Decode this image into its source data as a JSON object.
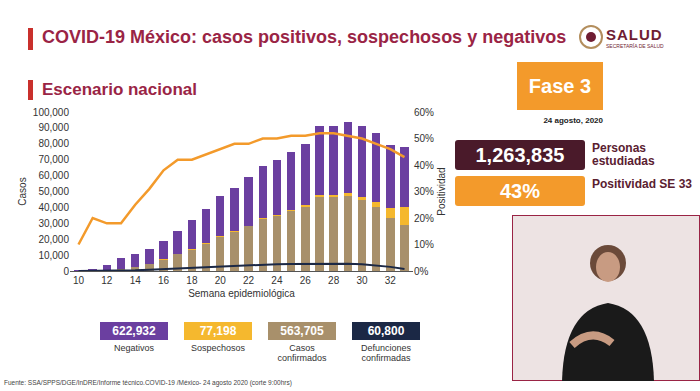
{
  "header": {
    "title": "COVID-19 México: casos positivos, sospechosos y negativos",
    "logo": "SALUD",
    "logo_subtitle": "SECRETARÍA DE SALUD"
  },
  "side": {
    "phase": "Fase 3",
    "date": "24 agosto, 2020",
    "stats": [
      {
        "value": "1,263,835",
        "label": "Personas estudiadas",
        "color": "#4a1a2a"
      },
      {
        "value": "43%",
        "label": "Positividad SE 33",
        "color": "#f39a2b"
      }
    ]
  },
  "totals": [
    {
      "value": "622,932",
      "label": "Negativos"
    },
    {
      "value": "77,198",
      "label": "Sospechosos"
    },
    {
      "value": "563,705",
      "label": "Casos confirmados"
    },
    {
      "value": "60,800",
      "label": "Defunciones confirmadas"
    }
  ],
  "source": "Fuente: SSA/SPPS/DGE/InDRE/Informe técnico.COVID-19 /México- 24 agosto 2020 (corte 9:00hrs)",
  "chart_data": {
    "type": "bar",
    "title": "Escenario nacional",
    "x_label": "Semana epidemiológica",
    "y_label": "Casos",
    "y2_label": "Positividad",
    "stacked": true,
    "grid": false,
    "x": [
      10,
      11,
      12,
      13,
      14,
      15,
      16,
      17,
      18,
      19,
      20,
      21,
      22,
      23,
      24,
      25,
      26,
      27,
      28,
      29,
      30,
      31,
      32,
      33
    ],
    "xlim": [
      9.4,
      33.6
    ],
    "xticks": [
      10,
      12,
      14,
      16,
      18,
      20,
      22,
      24,
      26,
      28,
      30,
      32
    ],
    "ylim": [
      0,
      100000
    ],
    "yticks": [
      0,
      {
        "value": 10000,
        "label": "10,000"
      },
      {
        "value": 20000,
        "label": "20,000"
      },
      {
        "value": 30000,
        "label": "30,000"
      },
      {
        "value": 40000,
        "label": "40,000"
      },
      {
        "value": 50000,
        "label": "50,000"
      },
      {
        "value": 60000,
        "label": "60,000"
      },
      {
        "value": 70000,
        "label": "70,000"
      },
      {
        "value": 80000,
        "label": "80,000"
      },
      {
        "value": 90000,
        "label": "90,000"
      },
      {
        "value": 100000,
        "label": "100,000"
      }
    ],
    "y2lim": [
      0,
      60
    ],
    "y2ticks": [
      {
        "value": 0,
        "label": "0%"
      },
      {
        "value": 10,
        "label": "10%"
      },
      {
        "value": 20,
        "label": "20%"
      },
      {
        "value": 30,
        "label": "30%"
      },
      {
        "value": 40,
        "label": "40%"
      },
      {
        "value": 50,
        "label": "50%"
      },
      {
        "value": 60,
        "label": "60%"
      }
    ],
    "series": [
      {
        "name": "Casos confirmados",
        "type": "bar",
        "color": "#a8906b",
        "values": [
          50,
          300,
          720,
          1440,
          2750,
          4340,
          7200,
          10500,
          13400,
          17100,
          21500,
          24800,
          28100,
          32800,
          34800,
          37900,
          40300,
          46800,
          46700,
          47000,
          44500,
          40000,
          33600,
          28700
        ]
      },
      {
        "name": "Sospechosos",
        "type": "bar",
        "color": "#f5b82e",
        "values": [
          0,
          0,
          0,
          0,
          0,
          100,
          100,
          200,
          200,
          300,
          300,
          400,
          500,
          500,
          600,
          700,
          900,
          1000,
          1200,
          1800,
          2000,
          3700,
          6000,
          11300
        ]
      },
      {
        "name": "Negativos",
        "type": "bar",
        "color": "#6b3fa0",
        "values": [
          450,
          1200,
          3280,
          6560,
          8250,
          9560,
          11700,
          14300,
          18400,
          21600,
          25200,
          26800,
          30400,
          32700,
          34600,
          36400,
          38800,
          43200,
          43100,
          45200,
          44500,
          43300,
          39400,
          38000
        ]
      },
      {
        "name": "Positividad",
        "type": "line",
        "axis": "y2",
        "color": "#f39a2b",
        "values": [
          10,
          20,
          18,
          18,
          25,
          31,
          38,
          42,
          42,
          44,
          46,
          48,
          48,
          50,
          50,
          51,
          51,
          52,
          52,
          51,
          50,
          48,
          46,
          43
        ]
      },
      {
        "name": "Defunciones confirmadas",
        "type": "line",
        "color": "#1b2845",
        "values": [
          0,
          5,
          30,
          150,
          400,
          800,
          1200,
          1700,
          2200,
          2700,
          3100,
          3400,
          3800,
          4100,
          4300,
          4400,
          4500,
          4700,
          4800,
          4600,
          4200,
          3600,
          2600,
          1200
        ]
      }
    ]
  }
}
